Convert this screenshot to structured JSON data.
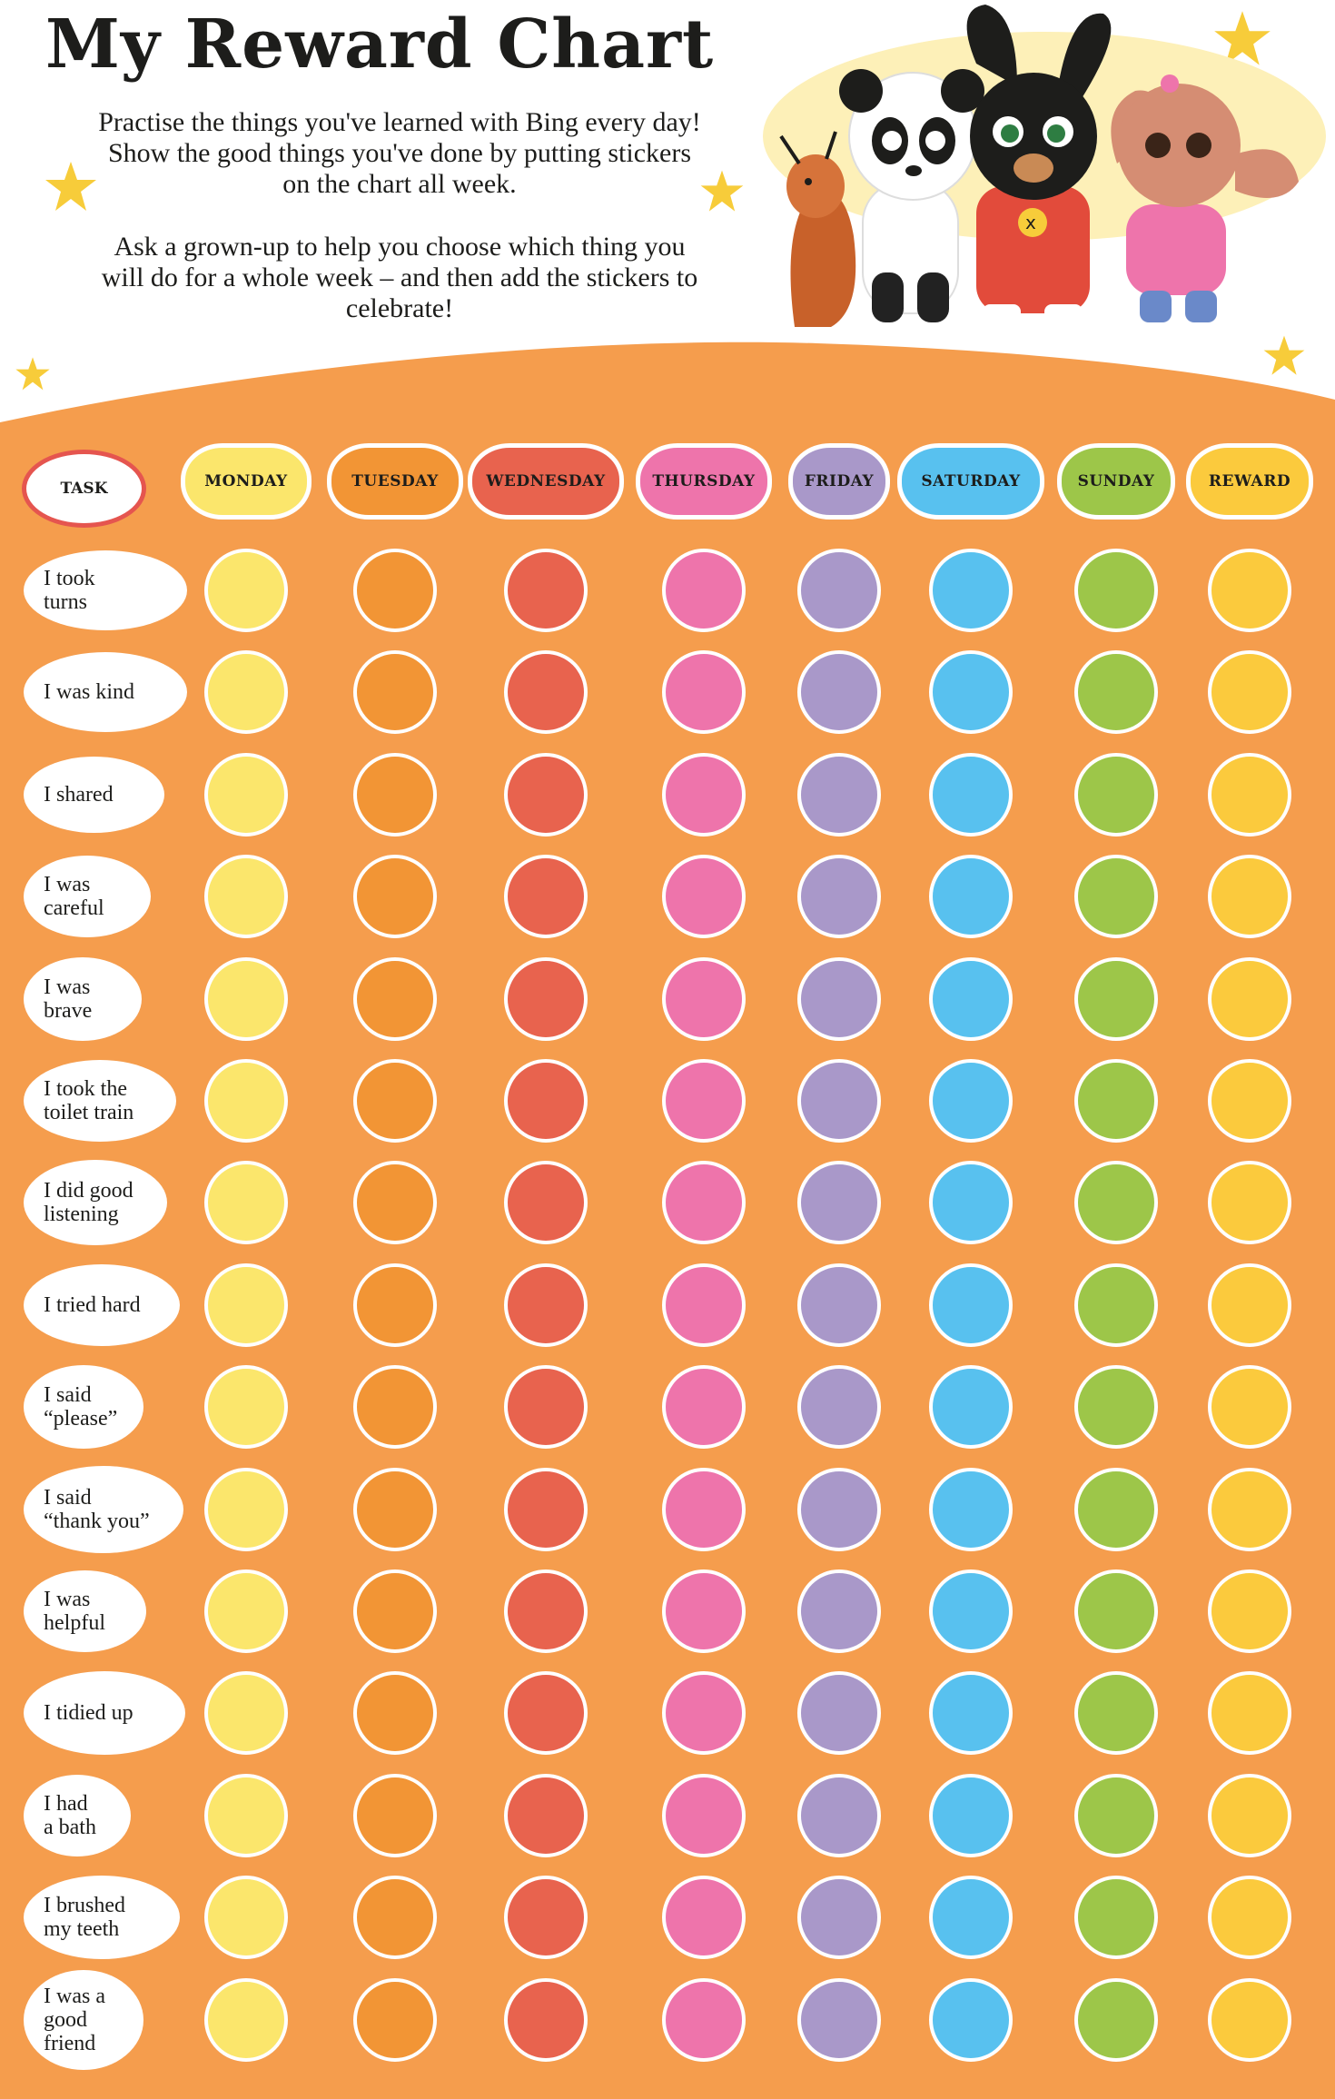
{
  "header": {
    "title": "My Reward Chart",
    "intro_paragraph_1": "Practise the things you've learned with Bing every day! Show the good things you've done by putting stickers on the chart all week.",
    "intro_paragraph_2": "Ask a grown-up to help you choose which thing you will do for a whole week – and then add the stickers to celebrate!"
  },
  "colors": {
    "board": "#f59d4d",
    "star": "#f7cc3a",
    "task_header_border": "#e5554f"
  },
  "table": {
    "task_header": "TASK",
    "columns": [
      {
        "label": "MONDAY",
        "color": "#fbe66c"
      },
      {
        "label": "TUESDAY",
        "color": "#f29535"
      },
      {
        "label": "WEDNESDAY",
        "color": "#e8634e"
      },
      {
        "label": "THURSDAY",
        "color": "#ee74ab"
      },
      {
        "label": "FRIDAY",
        "color": "#a998c9"
      },
      {
        "label": "SATURDAY",
        "color": "#58c1ef"
      },
      {
        "label": "SUNDAY",
        "color": "#9dc649"
      },
      {
        "label": "REWARD",
        "color": "#fbca3d"
      }
    ],
    "tasks": [
      "I took\nturns",
      "I was kind",
      "I shared",
      "I was\ncareful",
      "I was\nbrave",
      "I took the\ntoilet train",
      "I did good\nlistening",
      "I tried hard",
      "I said\n“please”",
      "I said\n“thank you”",
      "I was\nhelpful",
      "I tidied up",
      "I had\na bath",
      "I brushed\nmy teeth",
      "I was a\ngood\nfriend"
    ]
  },
  "illustration": {
    "characters": [
      "Flop",
      "Pando",
      "Bing",
      "Sula"
    ]
  }
}
